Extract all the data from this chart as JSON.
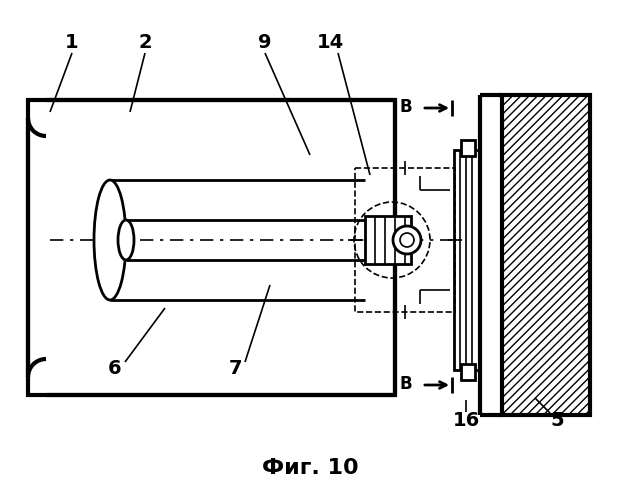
{
  "title": "Фиг. 10",
  "bg_color": "#ffffff",
  "line_color": "#000000",
  "lw_thin": 1.2,
  "lw_med": 2.0,
  "lw_thick": 3.0
}
